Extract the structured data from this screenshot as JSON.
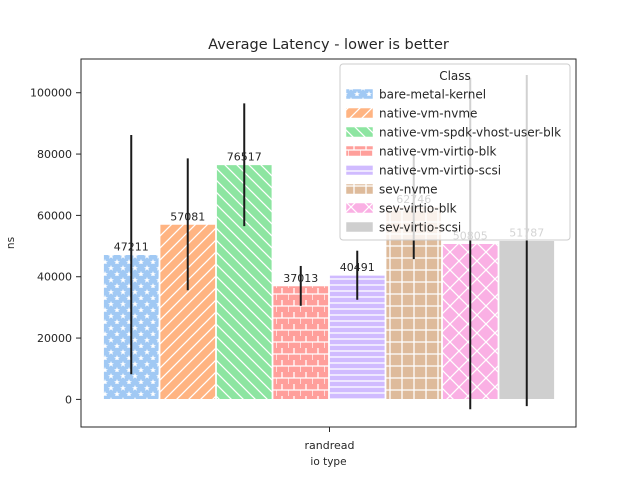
{
  "chart_data": {
    "type": "bar",
    "title": "Average Latency - lower is better",
    "xlabel": "io type",
    "ylabel": "ns",
    "categories": [
      "randread"
    ],
    "ylim": [
      -9000,
      111000
    ],
    "yticks": [
      0,
      20000,
      40000,
      60000,
      80000,
      100000
    ],
    "grid": false,
    "legend": {
      "title": "Class",
      "placement": "top-right"
    },
    "series": [
      {
        "name": "bare-metal-kernel",
        "values": [
          47211
        ],
        "error": [
          39000
        ],
        "label": "47211",
        "color": "#a1c9f4",
        "hatch": "stars"
      },
      {
        "name": "native-vm-nvme",
        "values": [
          57081
        ],
        "error": [
          21500
        ],
        "label": "57081",
        "color": "#ffb482",
        "hatch": "slash"
      },
      {
        "name": "native-vm-spdk-vhost-user-blk",
        "values": [
          76517
        ],
        "error": [
          20000
        ],
        "label": "76517",
        "color": "#8de5a1",
        "hatch": "backslash"
      },
      {
        "name": "native-vm-virtio-blk",
        "values": [
          37013
        ],
        "error": [
          6500
        ],
        "label": "37013",
        "color": "#ff9f9b",
        "hatch": "cross-boxes"
      },
      {
        "name": "native-vm-virtio-scsi",
        "values": [
          40491
        ],
        "error": [
          8000
        ],
        "label": "40491",
        "color": "#d0bbff",
        "hatch": "horizontal"
      },
      {
        "name": "sev-nvme",
        "values": [
          62746
        ],
        "error": [
          17000
        ],
        "label": "62746",
        "color": "#debb9b",
        "hatch": "grid"
      },
      {
        "name": "sev-virtio-blk",
        "values": [
          50805
        ],
        "error": [
          54000
        ],
        "label": "50805",
        "color": "#fab0e4",
        "hatch": "x"
      },
      {
        "name": "sev-virtio-scsi",
        "values": [
          51787
        ],
        "error": [
          54000
        ],
        "label": "51787",
        "color": "#cfcfcf",
        "hatch": "none"
      }
    ]
  }
}
